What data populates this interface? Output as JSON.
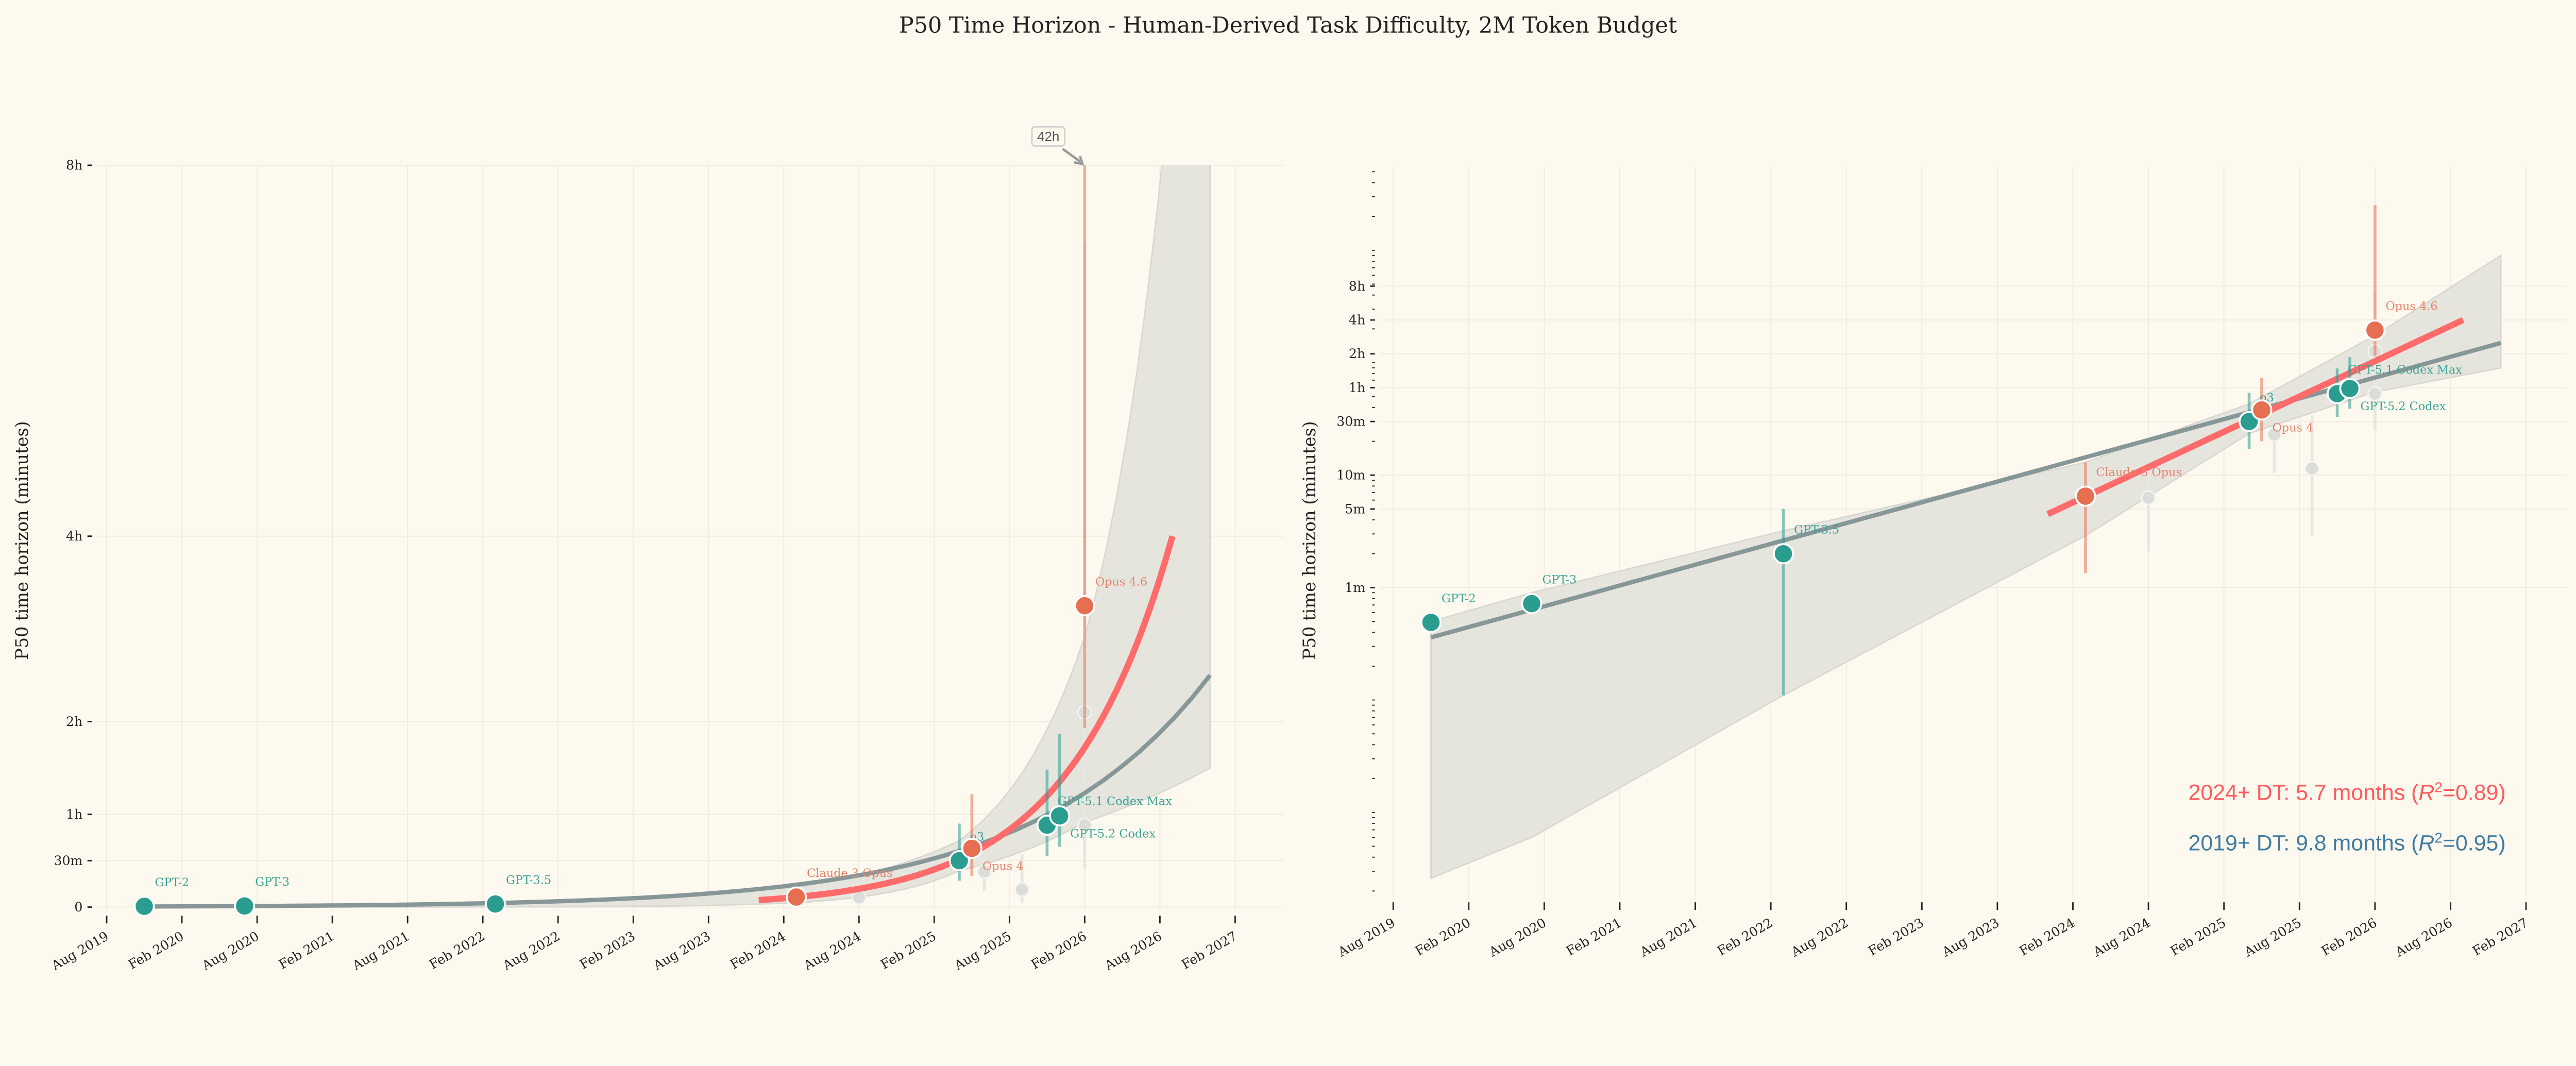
{
  "chart_data": {
    "type": "scatter",
    "title": "P50 Time Horizon - Human-Derived Task Difficulty, 2M Token Budget",
    "ylabel": "P50 time horizon (minutes)",
    "xlabel": "",
    "x_ticks": [
      "Aug 2019",
      "Feb 2020",
      "Aug 2020",
      "Feb 2021",
      "Aug 2021",
      "Feb 2022",
      "Aug 2022",
      "Feb 2023",
      "Aug 2023",
      "Feb 2024",
      "Aug 2024",
      "Feb 2025",
      "Aug 2025",
      "Feb 2026",
      "Aug 2026",
      "Feb 2027"
    ],
    "xlim": [
      "2019-08",
      "2027-02"
    ],
    "grid": true,
    "colors": {
      "background": "#fdf9ef",
      "openai": "#2a9d8f",
      "anthropic": "#e76f51",
      "faded": "#dcdcd8",
      "fit_2019": "#879797",
      "fit_2024": "#ff6b6b",
      "band": "#e5e5de",
      "annotation_2024": "#ff5a5a",
      "annotation_2019": "#3f7ca1"
    },
    "points": [
      {
        "label": "GPT-2",
        "date": "2019-11",
        "value": 0.49,
        "ci": [
          0.45,
          0.55
        ],
        "group": "openai",
        "label_position": "above-right"
      },
      {
        "label": "GPT-3",
        "date": "2020-07",
        "value": 0.72,
        "ci": [
          0.66,
          0.8
        ],
        "group": "openai",
        "label_position": "above-right"
      },
      {
        "label": "GPT-3.5",
        "date": "2022-03",
        "value": 2.0,
        "ci": [
          0.11,
          5.0
        ],
        "group": "openai",
        "label_position": "above-right"
      },
      {
        "label": "Claude 3 Opus",
        "date": "2024-03",
        "value": 6.5,
        "ci": [
          1.35,
          13
        ],
        "group": "anthropic",
        "label_position": "above-right"
      },
      {
        "label": "o3",
        "date": "2025-04",
        "value": 30,
        "ci": [
          17,
          54
        ],
        "group": "openai",
        "label_position": "above-right"
      },
      {
        "label": "Opus 4",
        "date": "2025-05",
        "value": 38,
        "ci": [
          20,
          73
        ],
        "group": "anthropic",
        "label_position": "below-right"
      },
      {
        "label": "GPT-5.1 Codex Max",
        "date": "2025-11",
        "value": 53,
        "ci": [
          33,
          89
        ],
        "group": "openai",
        "label_position": "above-right"
      },
      {
        "label": "GPT-5.2 Codex",
        "date": "2025-12",
        "value": 59,
        "ci": [
          39,
          112
        ],
        "group": "openai",
        "label_position": "below-right"
      },
      {
        "label": "Opus 4.6",
        "date": "2026-02",
        "value": 195,
        "ci": [
          116,
          2520
        ],
        "group": "anthropic",
        "label_position": "above-right"
      }
    ],
    "faded_points": [
      {
        "date": "2024-08",
        "value": 6.3,
        "ci": [
          2.1,
          10.5
        ]
      },
      {
        "date": "2025-06",
        "value": 23,
        "ci": [
          10.5,
          34
        ]
      },
      {
        "date": "2025-09",
        "value": 11.4,
        "ci": [
          2.9,
          34
        ]
      },
      {
        "date": "2026-02",
        "value": 53,
        "ci": [
          25,
          107
        ]
      },
      {
        "date": "2026-02",
        "value": 126,
        "ci": [
          70,
          430
        ]
      }
    ],
    "fits": [
      {
        "name": "2019+",
        "start": {
          "date": "2019-11",
          "value": 0.36
        },
        "end": {
          "date": "2026-12",
          "value": 150
        }
      },
      {
        "name": "2024+",
        "start": {
          "date": "2023-12",
          "value": 4.5
        },
        "end": {
          "date": "2026-09",
          "value": 240
        }
      }
    ],
    "band": [
      {
        "date": "2019-11",
        "lower": 0.0026,
        "upper": 0.5
      },
      {
        "date": "2020-07",
        "lower": 0.006,
        "upper": 0.9
      },
      {
        "date": "2022-03",
        "lower": 0.11,
        "upper": 3.2
      },
      {
        "date": "2024-03",
        "lower": 2.9,
        "upper": 13
      },
      {
        "date": "2025-04",
        "lower": 23.5,
        "upper": 43
      },
      {
        "date": "2026-02",
        "lower": 55,
        "upper": 175
      },
      {
        "date": "2026-12",
        "lower": 90,
        "upper": 900
      }
    ],
    "annotations": {
      "overflow_label": "42h",
      "fit_2024_text": "2024+ DT: 5.7 months (",
      "fit_2024_r2": "=0.89)",
      "fit_2019_text": "2019+ DT: 9.8 months (",
      "fit_2019_r2": "=0.95)",
      "r_symbol": "R",
      "r_exponent": "2"
    },
    "panels": [
      {
        "yscale": "linear",
        "ylim": [
          0,
          480
        ],
        "yticks": [
          {
            "v": 0,
            "label": "0"
          },
          {
            "v": 30,
            "label": "30m"
          },
          {
            "v": 60,
            "label": "1h"
          },
          {
            "v": 120,
            "label": "2h"
          },
          {
            "v": 240,
            "label": "4h"
          },
          {
            "v": 480,
            "label": "8h"
          }
        ]
      },
      {
        "yscale": "log",
        "ylim": [
          0.002,
          5600
        ],
        "yticks": [
          {
            "v": 1,
            "label": "1m"
          },
          {
            "v": 5,
            "label": "5m"
          },
          {
            "v": 10,
            "label": "10m"
          },
          {
            "v": 30,
            "label": "30m"
          },
          {
            "v": 60,
            "label": "1h"
          },
          {
            "v": 120,
            "label": "2h"
          },
          {
            "v": 240,
            "label": "4h"
          },
          {
            "v": 480,
            "label": "8h"
          }
        ]
      }
    ]
  }
}
